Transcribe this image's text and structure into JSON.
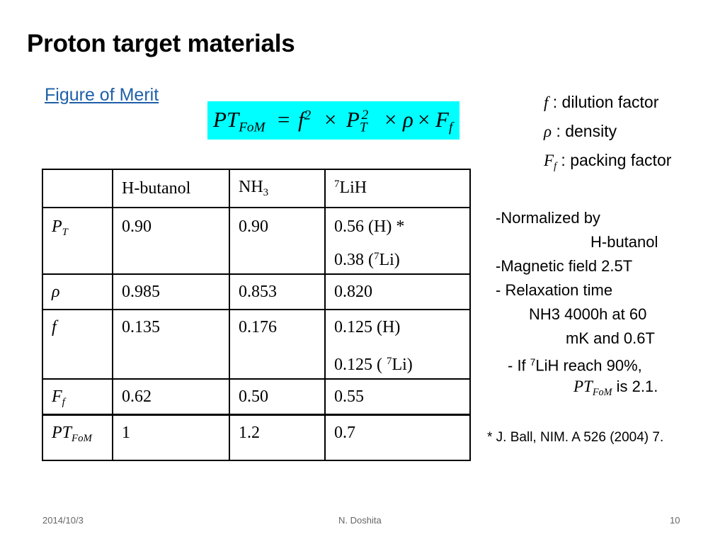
{
  "slide": {
    "title": "Proton target materials",
    "subtitle_link": "Figure of Merit"
  },
  "formula": {
    "lhs": "PT",
    "lhs_sub": "FoM",
    "eq": "=",
    "f": "f",
    "sq": "2",
    "times": "×",
    "P": "P",
    "P_sub": "T",
    "rho": "ρ",
    "F": "F",
    "F_sub": "f",
    "highlight_color": "#00ffff"
  },
  "definitions": [
    {
      "symbol": "f",
      "symbol_sub": "",
      "text": ": dilution factor"
    },
    {
      "symbol": "ρ",
      "symbol_sub": "",
      "text": ": density"
    },
    {
      "symbol": "F",
      "symbol_sub": "f",
      "text": ": packing factor"
    }
  ],
  "table": {
    "headers": {
      "h0": "",
      "h1": "H-butanol",
      "h2": "NH",
      "h2_sub": "3",
      "h3_sup": "7",
      "h3": "LiH"
    },
    "rows": {
      "pt": {
        "label": "P",
        "label_sub": "T",
        "c1": "0.90",
        "c2": "0.90",
        "c3a": "0.56 (H) *",
        "c3b_pre": "0.38 (",
        "c3b_sup": "7",
        "c3b_post": "Li)"
      },
      "rho": {
        "label": "ρ",
        "c1": "0.985",
        "c2": "0.853",
        "c3": "0.820"
      },
      "f": {
        "label": "f",
        "c1": "0.135",
        "c2": "0.176",
        "c3a": "0.125 (H)",
        "c3b_pre": "0.125 ( ",
        "c3b_sup": "7",
        "c3b_post": "Li)"
      },
      "ff": {
        "label": "F",
        "label_sub": "f",
        "c1": "0.62",
        "c2": "0.50",
        "c3": "0.55"
      },
      "ptfom": {
        "label": "PT",
        "label_sub": "FoM",
        "c1": "1",
        "c2": "1.2",
        "c3": "0.7"
      }
    }
  },
  "notes": {
    "n1": "-Normalized by",
    "n2": "H-butanol",
    "n3": "-Magnetic field 2.5T",
    "n4": "- Relaxation time",
    "n5": "NH3 4000h at 60",
    "n6": "mK and 0.6T",
    "n7_pre": "- If ",
    "n7_sup": "7",
    "n7_post": "LiH reach 90%,",
    "n8_sym": "PT",
    "n8_sub": "FoM",
    "n8_post": " is 2.1."
  },
  "reference": "* J. Ball, NIM. A 526 (2004) 7.",
  "footer": {
    "date": "2014/10/3",
    "author": "N. Doshita",
    "page": "10"
  }
}
